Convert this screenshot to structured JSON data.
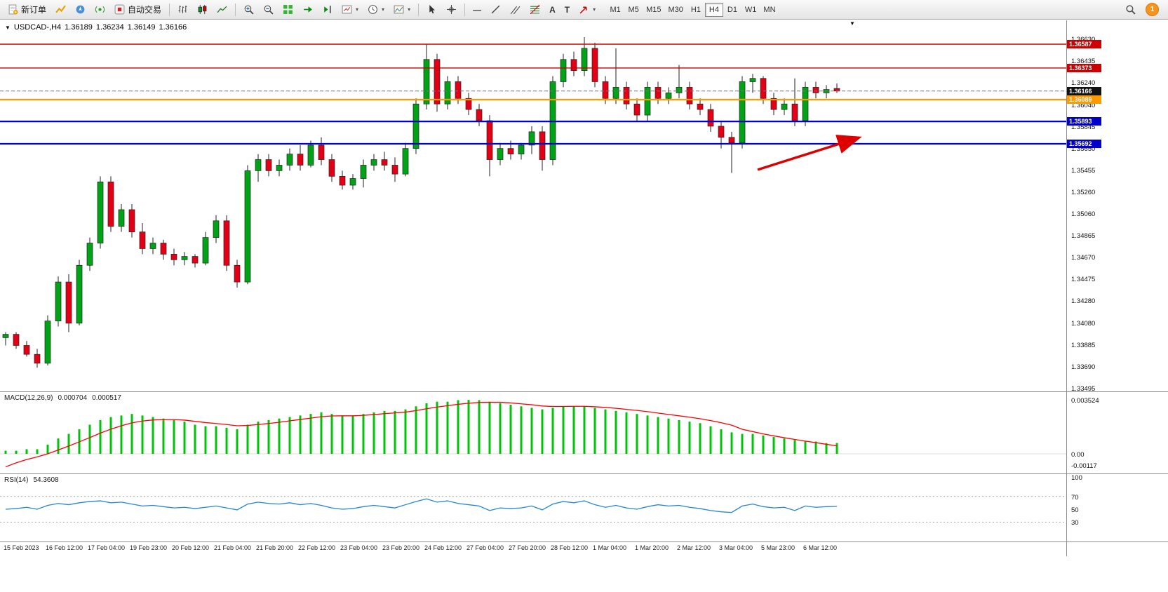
{
  "toolbar": {
    "new_order_label": "新订单",
    "autotrade_label": "自动交易",
    "timeframes": [
      "M1",
      "M5",
      "M15",
      "M30",
      "H1",
      "H4",
      "D1",
      "W1",
      "MN"
    ],
    "active_timeframe": "H4",
    "notification_count": "1"
  },
  "icons": {
    "dropdown_arrow": "▾",
    "collapse_arrow": "▼",
    "chart_shift_marker": "▼",
    "hline_tool": "—",
    "text_tool": "A",
    "label_tool": "T"
  },
  "chart_header": {
    "symbol_period": "USDCAD-,H4",
    "open": "1.36189",
    "high": "1.36234",
    "low": "1.36149",
    "close": "1.36166"
  },
  "indicators": {
    "macd_label": "MACD(12,26,9)",
    "macd_value": "0.000704",
    "macd_signal_value": "0.000517",
    "rsi_label": "RSI(14)",
    "rsi_value": "54.3608"
  },
  "chart_data": {
    "type": "candlestick",
    "symbol": "USDCAD-",
    "period": "H4",
    "colors": {
      "up": "#00a316",
      "down": "#e30016",
      "wick": "#222222",
      "macd_hist": "#00c40a",
      "macd_signal": "#ff0000",
      "rsi_line": "#2585d8",
      "arrow": "#dd0000"
    },
    "candles": [
      [
        1.3395,
        1.34,
        1.3388,
        1.3398
      ],
      [
        1.3398,
        1.34,
        1.3385,
        1.3388
      ],
      [
        1.3388,
        1.3392,
        1.3378,
        1.338
      ],
      [
        1.338,
        1.3385,
        1.3368,
        1.3372
      ],
      [
        1.3372,
        1.3415,
        1.337,
        1.341
      ],
      [
        1.341,
        1.345,
        1.3405,
        1.3445
      ],
      [
        1.3445,
        1.3452,
        1.34,
        1.3408
      ],
      [
        1.3408,
        1.3465,
        1.3406,
        1.346
      ],
      [
        1.346,
        1.3485,
        1.3455,
        1.348
      ],
      [
        1.348,
        1.354,
        1.3475,
        1.3535
      ],
      [
        1.3535,
        1.354,
        1.349,
        1.3495
      ],
      [
        1.3495,
        1.3515,
        1.349,
        1.351
      ],
      [
        1.351,
        1.3515,
        1.3485,
        1.349
      ],
      [
        1.349,
        1.3498,
        1.347,
        1.3475
      ],
      [
        1.3475,
        1.3485,
        1.347,
        1.348
      ],
      [
        1.348,
        1.3483,
        1.3465,
        1.347
      ],
      [
        1.347,
        1.3475,
        1.346,
        1.3465
      ],
      [
        1.3465,
        1.3472,
        1.346,
        1.3468
      ],
      [
        1.3468,
        1.347,
        1.3458,
        1.3462
      ],
      [
        1.3462,
        1.349,
        1.346,
        1.3485
      ],
      [
        1.3485,
        1.3505,
        1.348,
        1.35
      ],
      [
        1.35,
        1.3505,
        1.3455,
        1.346
      ],
      [
        1.346,
        1.3465,
        1.344,
        1.3445
      ],
      [
        1.3445,
        1.355,
        1.3443,
        1.3545
      ],
      [
        1.3545,
        1.356,
        1.3535,
        1.3555
      ],
      [
        1.3555,
        1.356,
        1.354,
        1.3545
      ],
      [
        1.3545,
        1.3555,
        1.354,
        1.355
      ],
      [
        1.355,
        1.3565,
        1.3545,
        1.356
      ],
      [
        1.356,
        1.3568,
        1.3545,
        1.355
      ],
      [
        1.355,
        1.3572,
        1.3548,
        1.3568
      ],
      [
        1.3568,
        1.3575,
        1.355,
        1.3555
      ],
      [
        1.3555,
        1.356,
        1.3535,
        1.354
      ],
      [
        1.354,
        1.3545,
        1.3528,
        1.3532
      ],
      [
        1.3532,
        1.3542,
        1.3528,
        1.3538
      ],
      [
        1.3538,
        1.3555,
        1.353,
        1.355
      ],
      [
        1.355,
        1.356,
        1.3545,
        1.3555
      ],
      [
        1.3555,
        1.3562,
        1.3545,
        1.355
      ],
      [
        1.355,
        1.3557,
        1.3535,
        1.3542
      ],
      [
        1.3542,
        1.357,
        1.354,
        1.3565
      ],
      [
        1.3565,
        1.361,
        1.356,
        1.3605
      ],
      [
        1.3605,
        1.3659,
        1.36,
        1.3645
      ],
      [
        1.3645,
        1.365,
        1.3598,
        1.3605
      ],
      [
        1.3605,
        1.363,
        1.36,
        1.3625
      ],
      [
        1.3625,
        1.363,
        1.3605,
        1.361
      ],
      [
        1.361,
        1.3615,
        1.3595,
        1.36
      ],
      [
        1.36,
        1.3605,
        1.3585,
        1.359
      ],
      [
        1.359,
        1.3595,
        1.354,
        1.3555
      ],
      [
        1.3555,
        1.357,
        1.355,
        1.3565
      ],
      [
        1.3565,
        1.3572,
        1.3555,
        1.356
      ],
      [
        1.356,
        1.357,
        1.3555,
        1.3568
      ],
      [
        1.3568,
        1.3585,
        1.356,
        1.358
      ],
      [
        1.358,
        1.3585,
        1.3545,
        1.3555
      ],
      [
        1.3555,
        1.363,
        1.355,
        1.3625
      ],
      [
        1.3625,
        1.365,
        1.362,
        1.3645
      ],
      [
        1.3645,
        1.3652,
        1.363,
        1.3635
      ],
      [
        1.3635,
        1.3665,
        1.363,
        1.3655
      ],
      [
        1.3655,
        1.366,
        1.362,
        1.3625
      ],
      [
        1.3625,
        1.363,
        1.3605,
        1.361
      ],
      [
        1.361,
        1.3655,
        1.3605,
        1.362
      ],
      [
        1.362,
        1.3625,
        1.36,
        1.3605
      ],
      [
        1.3605,
        1.361,
        1.359,
        1.3595
      ],
      [
        1.3595,
        1.3625,
        1.359,
        1.362
      ],
      [
        1.362,
        1.3625,
        1.3605,
        1.361
      ],
      [
        1.361,
        1.362,
        1.3605,
        1.3615
      ],
      [
        1.3615,
        1.364,
        1.361,
        1.362
      ],
      [
        1.362,
        1.3625,
        1.36,
        1.3605
      ],
      [
        1.3605,
        1.361,
        1.3595,
        1.36
      ],
      [
        1.36,
        1.3605,
        1.358,
        1.3585
      ],
      [
        1.3585,
        1.359,
        1.3565,
        1.3575
      ],
      [
        1.3575,
        1.358,
        1.3543,
        1.357
      ],
      [
        1.357,
        1.363,
        1.3565,
        1.3625
      ],
      [
        1.3625,
        1.3632,
        1.3615,
        1.3628
      ],
      [
        1.3628,
        1.363,
        1.3605,
        1.361
      ],
      [
        1.361,
        1.3615,
        1.3595,
        1.36
      ],
      [
        1.36,
        1.361,
        1.3595,
        1.3605
      ],
      [
        1.3605,
        1.3628,
        1.3585,
        1.359
      ],
      [
        1.359,
        1.3625,
        1.3585,
        1.362
      ],
      [
        1.362,
        1.3625,
        1.361,
        1.3615
      ],
      [
        1.3615,
        1.3622,
        1.361,
        1.3618
      ],
      [
        1.36189,
        1.36234,
        1.36149,
        1.36166
      ]
    ],
    "time_labels": [
      "15 Feb 2023",
      "16 Feb 12:00",
      "17 Feb 04:00",
      "19 Feb 23:00",
      "20 Feb 12:00",
      "21 Feb 04:00",
      "21 Feb 20:00",
      "22 Feb 12:00",
      "23 Feb 04:00",
      "23 Feb 20:00",
      "24 Feb 12:00",
      "27 Feb 04:00",
      "27 Feb 20:00",
      "28 Feb 12:00",
      "1 Mar 04:00",
      "1 Mar 20:00",
      "2 Mar 12:00",
      "3 Mar 04:00",
      "5 Mar 23:00",
      "6 Mar 12:00"
    ],
    "price_axis": [
      1.3663,
      1.36435,
      1.3624,
      1.3604,
      1.35845,
      1.3565,
      1.35455,
      1.3526,
      1.3506,
      1.34865,
      1.3467,
      1.34475,
      1.3428,
      1.3408,
      1.33885,
      1.3369,
      1.33495
    ],
    "levels": [
      {
        "price": 1.36587,
        "label": "1.36587",
        "color": "#cc0000",
        "width": 1.4
      },
      {
        "price": 1.36373,
        "label": "1.36373",
        "color": "#cc0000",
        "width": 1.4
      },
      {
        "price": 1.36089,
        "label": "1.36089",
        "color": "#ff9900",
        "width": 2.2
      },
      {
        "price": 1.35893,
        "label": "1.35893",
        "color": "#0000cc",
        "width": 2.2
      },
      {
        "price": 1.35692,
        "label": "1.35692",
        "color": "#0000cc",
        "width": 2.2
      }
    ],
    "current_price": {
      "price": 1.36166,
      "label": "1.36166",
      "tag_bg": "#111111"
    },
    "macd": {
      "histogram": [
        0.0002,
        0.0002,
        0.0003,
        0.0003,
        0.0006,
        0.001,
        0.0013,
        0.0016,
        0.0019,
        0.0022,
        0.0024,
        0.0025,
        0.0026,
        0.0025,
        0.0024,
        0.0023,
        0.0022,
        0.0021,
        0.0019,
        0.0018,
        0.0018,
        0.0017,
        0.0016,
        0.0019,
        0.0021,
        0.0022,
        0.0023,
        0.0024,
        0.0025,
        0.0026,
        0.0027,
        0.0026,
        0.0025,
        0.0025,
        0.0026,
        0.0027,
        0.0028,
        0.0028,
        0.0029,
        0.0031,
        0.0033,
        0.0034,
        0.0034,
        0.0035,
        0.00352,
        0.0035,
        0.0034,
        0.0033,
        0.0032,
        0.0031,
        0.003,
        0.0029,
        0.003,
        0.0031,
        0.0031,
        0.0031,
        0.003,
        0.0029,
        0.0028,
        0.0027,
        0.0026,
        0.0025,
        0.0024,
        0.0023,
        0.0022,
        0.0021,
        0.002,
        0.0018,
        0.0016,
        0.0014,
        0.0013,
        0.0013,
        0.0012,
        0.0011,
        0.001,
        0.0009,
        0.0008,
        0.0008,
        0.0007,
        0.000704
      ],
      "signal": [
        -0.00085,
        -0.00059,
        -0.00037,
        -0.0002,
        0.0,
        0.00025,
        0.00051,
        0.00078,
        0.00106,
        0.00135,
        0.00161,
        0.00183,
        0.00202,
        0.00214,
        0.00221,
        0.00223,
        0.00223,
        0.0022,
        0.00212,
        0.00204,
        0.00198,
        0.00191,
        0.00183,
        0.00185,
        0.00191,
        0.00198,
        0.00206,
        0.00215,
        0.00224,
        0.00233,
        0.00242,
        0.00247,
        0.00248,
        0.00248,
        0.00251,
        0.00256,
        0.00262,
        0.00267,
        0.00272,
        0.00282,
        0.00294,
        0.00305,
        0.00314,
        0.00323,
        0.0033,
        0.00335,
        0.00336,
        0.00336,
        0.00332,
        0.00326,
        0.0032,
        0.00312,
        0.00309,
        0.00309,
        0.0031,
        0.0031,
        0.00307,
        0.00303,
        0.00297,
        0.0029,
        0.00283,
        0.00275,
        0.00266,
        0.00257,
        0.00248,
        0.00239,
        0.00229,
        0.00217,
        0.00203,
        0.00187,
        0.0016,
        0.00145,
        0.0013,
        0.00117,
        0.00105,
        0.00094,
        0.00083,
        0.00073,
        0.00062,
        0.00052
      ],
      "axis": [
        {
          "text": "0.003524",
          "value": 0.003524
        },
        {
          "text": "0.00",
          "value": 0
        },
        {
          "text": "-0.00117",
          "value": -0.00117
        }
      ]
    },
    "rsi": {
      "series": [
        50,
        51,
        53,
        50,
        56,
        59,
        57,
        60,
        62,
        63,
        60,
        61,
        58,
        55,
        56,
        54,
        52,
        53,
        51,
        53,
        55,
        52,
        49,
        58,
        61,
        59,
        58,
        60,
        57,
        59,
        56,
        52,
        50,
        51,
        54,
        56,
        54,
        52,
        57,
        62,
        66,
        61,
        63,
        59,
        57,
        55,
        48,
        52,
        51,
        52,
        55,
        49,
        58,
        62,
        60,
        63,
        57,
        53,
        56,
        52,
        50,
        54,
        57,
        55,
        56,
        53,
        51,
        48,
        46,
        45,
        55,
        58,
        54,
        52,
        53,
        48,
        55,
        53,
        54,
        54.36
      ],
      "levels": [
        70,
        30
      ],
      "axis": [
        {
          "text": "100",
          "value": 100
        },
        {
          "text": "70",
          "value": 70
        },
        {
          "text": "50",
          "value": 50
        },
        {
          "text": "30",
          "value": 30
        }
      ]
    },
    "annotation_arrow": {
      "from": [
        1080,
        242
      ],
      "to": [
        1222,
        197
      ]
    }
  }
}
